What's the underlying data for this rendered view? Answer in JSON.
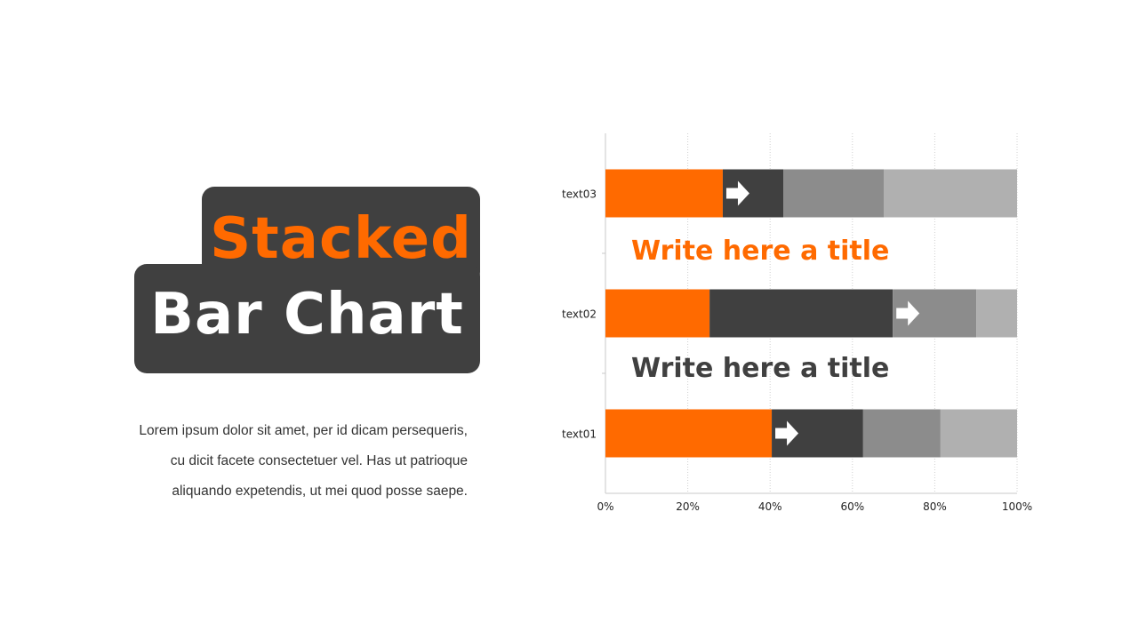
{
  "heading": {
    "line1": "Stacked",
    "line2": "Bar Chart"
  },
  "paragraph": [
    "Lorem ipsum dolor sit amet, per id dicam persequeris,",
    "cu dicit facete consectetuer vel. Has ut patrioque",
    "aliquando expetendis, ut mei quod posse saepe."
  ],
  "chart_titles": [
    {
      "text": "Write here a title",
      "color": "#ff6a00"
    },
    {
      "text": "Write here a title",
      "color": "#404040"
    }
  ],
  "colors": {
    "accent": "#ff6a00",
    "dark": "#404040",
    "mid": "#8c8c8c",
    "light": "#b0b0b0"
  },
  "chart_data": {
    "type": "bar",
    "orientation": "horizontal",
    "stacked": "percent",
    "categories": [
      "text01",
      "text02",
      "text03"
    ],
    "series": [
      {
        "values": [
          40.4,
          25.3,
          28.5
        ],
        "color": "#ff6a00"
      },
      {
        "values": [
          22.2,
          44.5,
          14.7
        ],
        "color": "#404040"
      },
      {
        "values": [
          18.8,
          20.3,
          24.4
        ],
        "color": "#8c8c8c"
      },
      {
        "values": [
          18.6,
          9.9,
          32.4
        ],
        "color": "#b0b0b0"
      }
    ],
    "arrow_icon_series": [
      1,
      2,
      1
    ],
    "xlim": [
      0,
      100
    ],
    "xticks": [
      "0%",
      "20%",
      "40%",
      "60%",
      "80%",
      "100%"
    ],
    "grid": "vertical dotted",
    "legend": "none"
  }
}
